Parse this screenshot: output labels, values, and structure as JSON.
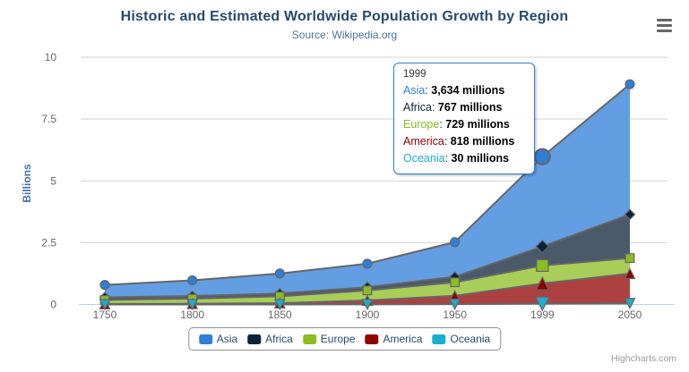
{
  "header": {
    "title": "Historic and Estimated Worldwide Population Growth by Region",
    "subtitle": "Source: Wikipedia.org"
  },
  "credits": "Highcharts.com",
  "chart_data": {
    "type": "area",
    "stacking": "normal",
    "title": "Historic and Estimated Worldwide Population Growth by Region",
    "subtitle": "Source: Wikipedia.org",
    "categories": [
      "1750",
      "1800",
      "1850",
      "1900",
      "1950",
      "1999",
      "2050"
    ],
    "series": [
      {
        "name": "Asia",
        "color": "#2f7ed8",
        "marker": "circle",
        "values": [
          502,
          635,
          809,
          947,
          1402,
          3634,
          5268
        ]
      },
      {
        "name": "Africa",
        "color": "#0d233a",
        "marker": "diamond",
        "values": [
          106,
          107,
          111,
          133,
          221,
          767,
          1766
        ]
      },
      {
        "name": "Europe",
        "color": "#8bbc21",
        "marker": "square",
        "values": [
          163,
          203,
          276,
          408,
          547,
          729,
          628
        ]
      },
      {
        "name": "America",
        "color": "#910000",
        "marker": "triangle",
        "values": [
          18,
          31,
          54,
          156,
          339,
          818,
          1201
        ]
      },
      {
        "name": "Oceania",
        "color": "#1aadce",
        "marker": "triangle-down",
        "values": [
          2,
          2,
          2,
          6,
          13,
          30,
          46
        ]
      }
    ],
    "values_unit": "millions",
    "xlabel": "",
    "ylabel": "Billions",
    "yticks": [
      0,
      2.5,
      5,
      7.5,
      10
    ],
    "ylim": [
      0,
      10
    ],
    "grid": "horizontal",
    "legend_position": "bottom-center",
    "hovered_category": "1999",
    "hovered_category_index": 5
  },
  "tooltip": {
    "header": "1999",
    "rows": [
      {
        "label": "Asia",
        "value": "3,634 millions"
      },
      {
        "label": "Africa",
        "value": "767 millions"
      },
      {
        "label": "Europe",
        "value": "729 millions"
      },
      {
        "label": "America",
        "value": "818 millions"
      },
      {
        "label": "Oceania",
        "value": "30 millions"
      }
    ]
  },
  "ui_colors": {
    "title": "#274b6d",
    "subtitle": "#4d759e",
    "y_axis_title": "#4572a7",
    "axis_labels": "#666666",
    "gridline": "#d3d3d3",
    "axis_line": "#c0d0e0",
    "series_outline": "#666666",
    "legend_text": "#274b6d",
    "legend_border": "#8f8f8f",
    "tooltip_border": "#2f7ed8",
    "credits": "#999999",
    "menu_icon": "#666666"
  }
}
